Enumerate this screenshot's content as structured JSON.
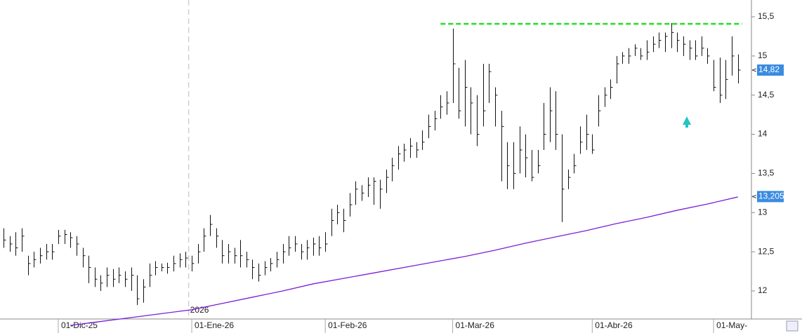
{
  "chart_data": {
    "type": "ohlc",
    "categories": [
      null,
      null,
      null,
      null,
      null,
      null,
      null,
      null,
      null,
      "01-Dic-25",
      null,
      null,
      null,
      null,
      null,
      null,
      null,
      null,
      null,
      null,
      null,
      null,
      null,
      null,
      null,
      null,
      null,
      null,
      null,
      null,
      null,
      "01-Ene-26",
      null,
      null,
      null,
      null,
      null,
      null,
      null,
      null,
      null,
      null,
      null,
      null,
      null,
      null,
      null,
      null,
      null,
      null,
      null,
      null,
      null,
      "01-Feb-26",
      null,
      null,
      null,
      null,
      null,
      null,
      null,
      null,
      null,
      null,
      null,
      null,
      null,
      null,
      null,
      null,
      null,
      null,
      null,
      null,
      "01-Mar-26",
      null,
      null,
      null,
      null,
      null,
      null,
      null,
      null,
      null,
      null,
      null,
      null,
      null,
      null,
      null,
      null,
      null,
      null,
      null,
      null,
      null,
      null,
      "01-Abr-26",
      null,
      null,
      null,
      null,
      null,
      null,
      null,
      null,
      null,
      null,
      null,
      null,
      null,
      null,
      null,
      null,
      null,
      null,
      null,
      "01-May-",
      null,
      null,
      null,
      null
    ],
    "close": [
      12.65,
      12.6,
      12.55,
      12.7,
      12.35,
      12.4,
      12.45,
      12.5,
      12.5,
      12.7,
      12.72,
      12.68,
      12.6,
      12.45,
      12.3,
      12.15,
      12.1,
      12.2,
      12.15,
      12.2,
      12.15,
      12.2,
      11.9,
      12.05,
      12.2,
      12.3,
      12.3,
      12.3,
      12.35,
      12.4,
      12.42,
      12.35,
      12.5,
      12.7,
      12.85,
      12.7,
      12.45,
      12.5,
      12.45,
      12.45,
      12.4,
      12.3,
      12.2,
      12.3,
      12.35,
      12.4,
      12.5,
      12.55,
      12.6,
      12.5,
      12.55,
      12.6,
      12.55,
      12.6,
      12.9,
      13.0,
      12.9,
      13.1,
      13.3,
      13.25,
      13.35,
      13.4,
      13.3,
      13.45,
      13.6,
      13.75,
      13.8,
      13.85,
      13.8,
      13.9,
      14.1,
      14.2,
      14.35,
      14.4,
      14.9,
      14.3,
      14.6,
      14.4,
      14.0,
      14.3,
      14.8,
      14.5,
      14.1,
      13.6,
      13.5,
      13.8,
      13.7,
      13.45,
      13.6,
      14.0,
      14.3,
      14.0,
      13.3,
      13.45,
      13.6,
      13.9,
      14.0,
      13.8,
      14.3,
      14.5,
      14.6,
      14.9,
      15.0,
      15.0,
      15.1,
      15.0,
      15.05,
      15.15,
      15.2,
      15.25,
      15.3,
      15.2,
      15.15,
      15.1,
      15.0,
      15.1,
      15.0,
      14.6,
      14.5,
      14.7,
      15.0,
      14.82
    ],
    "high": [
      12.8,
      12.7,
      12.75,
      12.8,
      12.45,
      12.5,
      12.55,
      12.6,
      12.6,
      12.78,
      12.78,
      12.75,
      12.7,
      12.55,
      12.45,
      12.3,
      12.2,
      12.3,
      12.28,
      12.3,
      12.25,
      12.3,
      12.2,
      12.15,
      12.35,
      12.38,
      12.35,
      12.36,
      12.45,
      12.48,
      12.5,
      12.45,
      12.6,
      12.8,
      12.97,
      12.8,
      12.65,
      12.6,
      12.55,
      12.65,
      12.5,
      12.4,
      12.35,
      12.38,
      12.42,
      12.5,
      12.6,
      12.7,
      12.7,
      12.6,
      12.65,
      12.68,
      12.7,
      12.75,
      13.05,
      13.1,
      13.05,
      13.25,
      13.4,
      13.35,
      13.45,
      13.45,
      13.42,
      13.55,
      13.7,
      13.85,
      13.88,
      13.95,
      13.9,
      14.05,
      14.25,
      14.3,
      14.5,
      14.55,
      15.35,
      14.85,
      14.95,
      14.6,
      14.5,
      14.9,
      14.9,
      14.6,
      14.3,
      13.9,
      13.9,
      14.1,
      14.0,
      13.8,
      13.8,
      14.4,
      14.6,
      14.55,
      14.0,
      13.55,
      13.75,
      14.1,
      14.25,
      14.0,
      14.5,
      14.6,
      14.7,
      15.0,
      15.05,
      15.1,
      15.15,
      15.1,
      15.2,
      15.25,
      15.3,
      15.3,
      15.42,
      15.3,
      15.25,
      15.2,
      15.2,
      15.25,
      15.1,
      14.95,
      14.98,
      14.95,
      15.25,
      15.02
    ],
    "low": [
      12.55,
      12.5,
      12.45,
      12.5,
      12.2,
      12.3,
      12.35,
      12.4,
      12.4,
      12.6,
      12.6,
      12.55,
      12.45,
      12.3,
      12.1,
      12.05,
      12.0,
      12.05,
      12.05,
      12.1,
      12.05,
      12.0,
      11.82,
      11.85,
      12.05,
      12.2,
      12.25,
      12.22,
      12.25,
      12.3,
      12.3,
      12.25,
      12.35,
      12.5,
      12.7,
      12.55,
      12.35,
      12.35,
      12.35,
      12.3,
      12.3,
      12.15,
      12.12,
      12.2,
      12.25,
      12.3,
      12.35,
      12.45,
      12.5,
      12.4,
      12.4,
      12.45,
      12.45,
      12.5,
      12.7,
      12.85,
      12.75,
      12.95,
      13.1,
      13.15,
      13.2,
      13.1,
      13.05,
      13.25,
      13.4,
      13.55,
      13.65,
      13.7,
      13.7,
      13.8,
      13.95,
      14.05,
      14.2,
      14.25,
      14.4,
      14.2,
      14.1,
      14.0,
      13.85,
      14.1,
      14.4,
      14.1,
      13.4,
      13.3,
      13.3,
      13.5,
      13.45,
      13.4,
      13.5,
      13.8,
      13.9,
      13.8,
      12.88,
      13.3,
      13.5,
      13.75,
      13.8,
      13.75,
      14.1,
      14.35,
      14.45,
      14.65,
      14.9,
      14.9,
      15.0,
      14.95,
      14.95,
      15.05,
      15.1,
      15.05,
      15.1,
      15.05,
      15.0,
      14.95,
      14.95,
      15.0,
      14.9,
      14.55,
      14.4,
      14.45,
      14.75,
      14.65
    ],
    "bar_color": "#111111",
    "line": {
      "color": "#7b1fd6",
      "x": [
        11,
        16,
        21,
        26,
        31,
        36,
        41,
        46,
        51,
        56,
        61,
        66,
        71,
        76,
        81,
        86,
        91,
        96,
        101,
        106,
        111,
        116,
        121
      ],
      "values": [
        11.56,
        11.61,
        11.66,
        11.71,
        11.76,
        11.84,
        11.92,
        12.0,
        12.09,
        12.16,
        12.23,
        12.3,
        12.37,
        12.44,
        12.52,
        12.61,
        12.69,
        12.77,
        12.86,
        12.94,
        13.03,
        13.11,
        13.2
      ]
    },
    "level": {
      "value": 15.41,
      "color": "#22dd22",
      "from": 72
    },
    "price_tags": [
      {
        "value": 14.82,
        "label": "14,82"
      },
      {
        "value": 13.205,
        "label": "13,205"
      }
    ],
    "year_marker": {
      "x": 30.5,
      "label": "2026"
    },
    "ylim": [
      11.55,
      15.6
    ],
    "yticks": [
      {
        "value": 12,
        "label": "12"
      },
      {
        "value": 12.5,
        "label": "12,5"
      },
      {
        "value": 13,
        "label": "13"
      },
      {
        "value": 13.5,
        "label": "13,5"
      },
      {
        "value": 14,
        "label": "14"
      },
      {
        "value": 14.5,
        "label": "14,5"
      },
      {
        "value": 15,
        "label": "15"
      },
      {
        "value": 15.5,
        "label": "15,5"
      }
    ]
  }
}
